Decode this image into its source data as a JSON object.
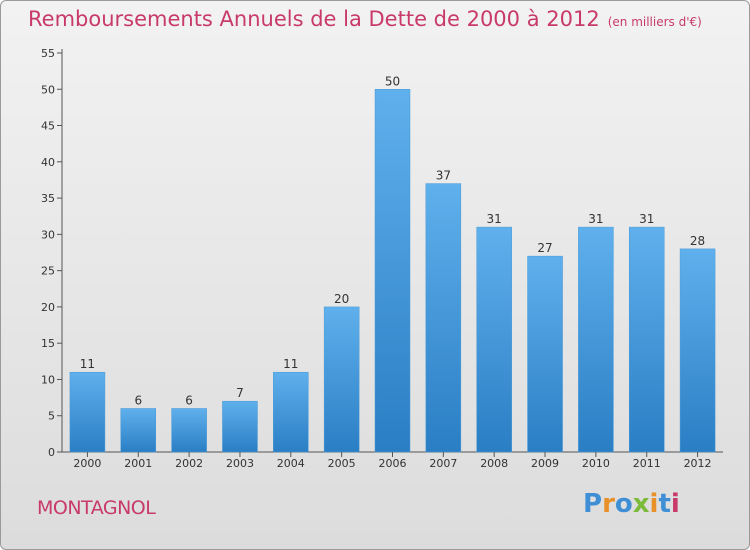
{
  "header": {
    "title": "Remboursements Annuels de la Dette de 2000 à 2012",
    "subtitle": "(en milliers d'€)"
  },
  "footer": {
    "commune": "MONTAGNOL",
    "logo_text": "Proxiti",
    "logo_colors": [
      "#3f8fd6",
      "#e8902a",
      "#3f8fd6",
      "#7cba3a",
      "#e8902a",
      "#3f8fd6",
      "#c83a6a"
    ]
  },
  "colors": {
    "bar_top": "#5fb0ec",
    "bar_bottom": "#2a7ec4",
    "title": "#c83a6a"
  },
  "chart_data": {
    "type": "bar",
    "categories": [
      "2000",
      "2001",
      "2002",
      "2003",
      "2004",
      "2005",
      "2006",
      "2007",
      "2008",
      "2009",
      "2010",
      "2011",
      "2012"
    ],
    "values": [
      11,
      6,
      6,
      7,
      11,
      20,
      50,
      37,
      31,
      27,
      31,
      31,
      28
    ],
    "ylim": [
      0,
      55
    ],
    "yticks": [
      0,
      5,
      10,
      15,
      20,
      25,
      30,
      35,
      40,
      45,
      50,
      55
    ],
    "grid": false,
    "xlabel": "",
    "ylabel": ""
  }
}
